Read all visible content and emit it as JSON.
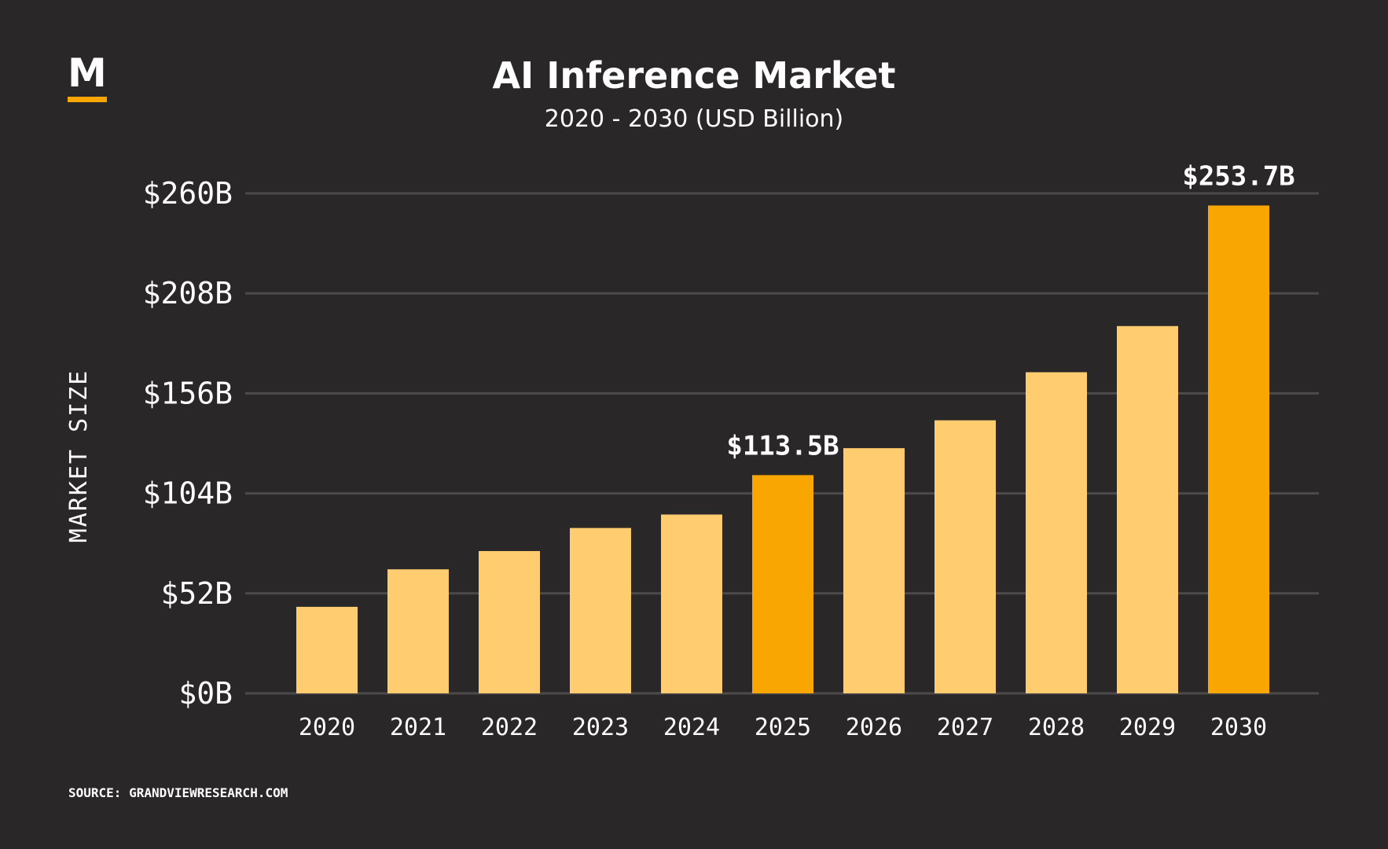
{
  "chart_data": {
    "type": "bar",
    "title": "AI Inference Market",
    "subtitle": "2020 - 2030 (USD Billion)",
    "ylabel": "MARKET SIZE",
    "xlabel": "",
    "categories": [
      "2020",
      "2021",
      "2022",
      "2023",
      "2024",
      "2025",
      "2026",
      "2027",
      "2028",
      "2029",
      "2030"
    ],
    "values": [
      45,
      64.5,
      74,
      86,
      93,
      113.5,
      127.5,
      142,
      167,
      191,
      253.7
    ],
    "highlighted": [
      "2025",
      "2030"
    ],
    "data_labels": [
      {
        "category": "2025",
        "text": "$113.5B"
      },
      {
        "category": "2030",
        "text": "$253.7B"
      }
    ],
    "ylim": [
      0,
      260
    ],
    "yticks": [
      {
        "value": 0,
        "label": "$0B"
      },
      {
        "value": 52,
        "label": "$52B"
      },
      {
        "value": 104,
        "label": "$104B"
      },
      {
        "value": 156,
        "label": "$156B"
      },
      {
        "value": 208,
        "label": "$208B"
      },
      {
        "value": 260,
        "label": "$260B"
      }
    ],
    "grid": true,
    "legend": "none"
  },
  "logo": {
    "letter": "M"
  },
  "source": "SOURCE: GRANDVIEWRESEARCH.COM",
  "colors": {
    "background": "#2a2729",
    "bar": "#ffcc70",
    "bar_highlight": "#f9a602",
    "grid": "#4d4a4c",
    "logo_underline": "#f9a602"
  }
}
